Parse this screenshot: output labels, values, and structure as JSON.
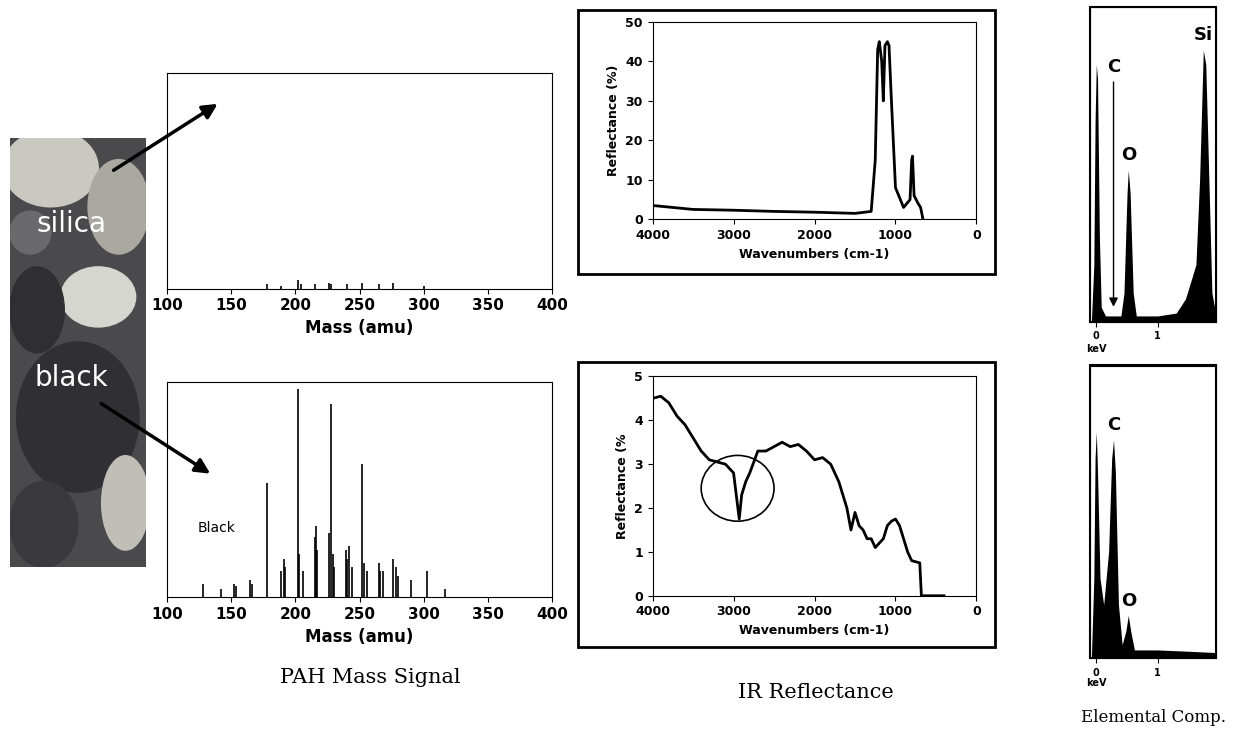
{
  "photo_labels": [
    "silica",
    "black"
  ],
  "panel_labels": [
    "PAH Mass Signal",
    "IR Reflectance",
    "Elemental Comp."
  ],
  "chart_data": [
    {
      "type": "stem",
      "color": "#000000",
      "xlabel": "Mass (amu)",
      "x": [
        178,
        189,
        202,
        204,
        215,
        226,
        228,
        240,
        252,
        265,
        276,
        300
      ],
      "values": [
        2,
        1.5,
        4,
        2,
        2,
        2.5,
        2,
        2,
        2.5,
        2,
        2.5,
        1.5
      ],
      "xlim": [
        100,
        400
      ],
      "xticks": [
        100,
        150,
        200,
        250,
        300,
        350,
        400
      ],
      "ylim": [
        0,
        100
      ],
      "yticks": [],
      "tick_labels": "x"
    },
    {
      "type": "stem",
      "color": "#000000",
      "xlabel": "Mass (amu)",
      "annotations": [
        {
          "text": "Black"
        }
      ],
      "x": [
        128,
        142,
        152,
        154,
        165,
        166,
        178,
        189,
        191,
        192,
        202,
        203,
        206,
        215,
        216,
        217,
        226,
        228,
        229,
        230,
        239,
        240,
        242,
        244,
        252,
        253,
        256,
        265,
        266,
        268,
        276,
        278,
        280,
        290,
        302,
        316
      ],
      "values": [
        6,
        4,
        6,
        5,
        8,
        6,
        53,
        12,
        18,
        14,
        97,
        20,
        12,
        28,
        33,
        22,
        30,
        90,
        20,
        14,
        22,
        18,
        24,
        14,
        62,
        16,
        12,
        16,
        12,
        12,
        18,
        14,
        10,
        8,
        12,
        4
      ],
      "xlim": [
        100,
        400
      ],
      "xticks": [
        100,
        150,
        200,
        250,
        300,
        350,
        400
      ],
      "ylim": [
        0,
        100
      ],
      "yticks": [],
      "tick_labels": "x"
    },
    {
      "type": "line",
      "color": "#000000",
      "xlabel": "Wavenumbers (cm-1)",
      "ylabel": "Reflectance (%)",
      "x": [
        4000,
        3500,
        3000,
        2500,
        2000,
        1500,
        1300,
        1250,
        1220,
        1200,
        1170,
        1150,
        1130,
        1100,
        1080,
        1050,
        1000,
        900,
        820,
        800,
        790,
        770,
        720,
        690,
        660
      ],
      "values": [
        3.5,
        2.5,
        2.3,
        2,
        1.8,
        1.5,
        2,
        15,
        43,
        45,
        40,
        30,
        44,
        45,
        44,
        30,
        8,
        3,
        5,
        15,
        16,
        6,
        4,
        3,
        0
      ],
      "xlim": [
        4000,
        0
      ],
      "xticks": [
        4000,
        3000,
        2000,
        1000,
        0
      ],
      "ylim": [
        0,
        50
      ],
      "yticks": [
        0,
        10,
        20,
        30,
        40,
        50
      ]
    },
    {
      "type": "line",
      "color": "#000000",
      "xlabel": "Wavenumbers (cm-1)",
      "ylabel": "Reflectance (%",
      "x": [
        4000,
        3900,
        3800,
        3700,
        3600,
        3500,
        3400,
        3300,
        3200,
        3100,
        3000,
        2960,
        2930,
        2900,
        2850,
        2800,
        2700,
        2600,
        2500,
        2400,
        2300,
        2200,
        2100,
        2000,
        1900,
        1800,
        1700,
        1600,
        1550,
        1500,
        1450,
        1400,
        1350,
        1300,
        1250,
        1200,
        1150,
        1100,
        1050,
        1000,
        950,
        900,
        850,
        800,
        700,
        680,
        600,
        400
      ],
      "values": [
        4.5,
        4.55,
        4.4,
        4.1,
        3.9,
        3.6,
        3.3,
        3.1,
        3.05,
        3.0,
        2.8,
        2.2,
        1.75,
        2.3,
        2.6,
        2.8,
        3.3,
        3.3,
        3.4,
        3.5,
        3.4,
        3.45,
        3.3,
        3.1,
        3.15,
        3.0,
        2.6,
        2.0,
        1.5,
        1.9,
        1.6,
        1.5,
        1.3,
        1.3,
        1.1,
        1.2,
        1.3,
        1.6,
        1.7,
        1.75,
        1.6,
        1.3,
        1.0,
        0.8,
        0.75,
        0,
        0,
        0
      ],
      "xlim": [
        4000,
        0
      ],
      "xticks": [
        4000,
        3000,
        2000,
        1000,
        0
      ],
      "ylim": [
        0,
        5
      ],
      "yticks": [
        0,
        1,
        2,
        3,
        4,
        5
      ]
    },
    {
      "type": "area",
      "color": "#000000",
      "xlabel": "keV",
      "annotations": [
        {
          "text": "C",
          "x": 0.28
        },
        {
          "text": "O",
          "x": 0.52
        },
        {
          "text": "Si",
          "x": 1.74
        }
      ],
      "x": [
        -0.08,
        -0.04,
        -0.02,
        0,
        0.02,
        0.05,
        0.08,
        0.15,
        0.28,
        0.4,
        0.45,
        0.5,
        0.52,
        0.55,
        0.6,
        0.65,
        1.0,
        1.3,
        1.45,
        1.55,
        1.62,
        1.68,
        1.74,
        1.78,
        1.83,
        1.88,
        1.95
      ],
      "values": [
        0,
        0.2,
        0.7,
        0.9,
        0.85,
        0.3,
        0.05,
        0.02,
        0.02,
        0.02,
        0.1,
        0.45,
        0.53,
        0.45,
        0.1,
        0.02,
        0.02,
        0.03,
        0.08,
        0.15,
        0.2,
        0.5,
        0.95,
        0.9,
        0.5,
        0.1,
        0.02
      ],
      "xlim": [
        -0.1,
        1.95
      ],
      "xticks": [
        0,
        1
      ],
      "ylim": [
        0,
        1.1
      ],
      "yticks": [],
      "tick_labels": "x"
    },
    {
      "type": "area",
      "color": "#000000",
      "xlabel": "keV",
      "annotations": [
        {
          "text": "C",
          "x": 0.28
        },
        {
          "text": "O",
          "x": 0.52
        }
      ],
      "x": [
        -0.08,
        -0.04,
        -0.02,
        0,
        0.02,
        0.06,
        0.12,
        0.2,
        0.25,
        0.28,
        0.31,
        0.36,
        0.42,
        0.48,
        0.52,
        0.56,
        0.62,
        1.0,
        1.5,
        1.95
      ],
      "values": [
        0,
        0.3,
        0.75,
        0.85,
        0.7,
        0.3,
        0.2,
        0.4,
        0.75,
        0.82,
        0.7,
        0.2,
        0.05,
        0.1,
        0.16,
        0.1,
        0.03,
        0.03,
        0.025,
        0.02
      ],
      "xlim": [
        -0.1,
        1.95
      ],
      "xticks": [
        0,
        1
      ],
      "ylim": [
        0,
        1.1
      ],
      "yticks": [],
      "tick_labels": "x"
    }
  ]
}
